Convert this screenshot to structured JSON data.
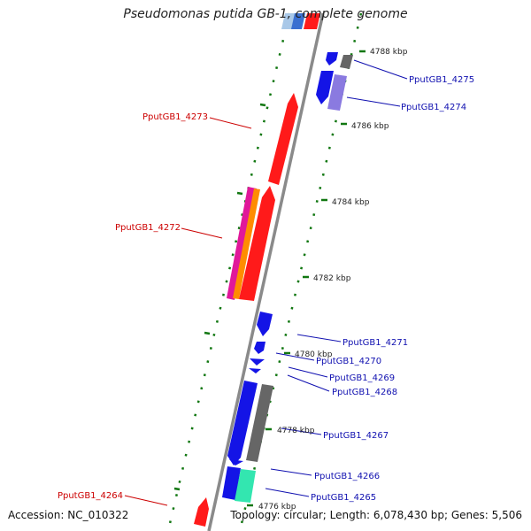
{
  "header": {
    "title": "Pseudomonas putida GB-1, complete genome"
  },
  "footer": {
    "accession": "Accession: NC_010322",
    "topology": "Topology: circular; Length: 6,078,430 bp; Genes: 5,506"
  },
  "colors": {
    "forward_red": "#ff1a1a",
    "reverse_blue": "#1414e6",
    "magenta": "#e0189a",
    "orange": "#ff8c00",
    "gray": "#777777",
    "lavender": "#8a7ae0",
    "teal": "#33e6b0",
    "tick_green": "#117711",
    "backbone": "#888888",
    "label_red": "#cc0000",
    "label_blue": "#1010b0"
  },
  "kbp_labels": {
    "k4788": "4788 kbp",
    "k4786": "4786 kbp",
    "k4784": "4784 kbp",
    "k4782": "4782 kbp",
    "k4780": "4780 kbp",
    "k4778": "4778 kbp",
    "k4776": "4776 kbp"
  },
  "genes": {
    "g4275": "PputGB1_4275",
    "g4274": "PputGB1_4274",
    "g4273": "PputGB1_4273",
    "g4272": "PputGB1_4272",
    "g4271": "PputGB1_4271",
    "g4270": "PputGB1_4270",
    "g4269": "PputGB1_4269",
    "g4268": "PputGB1_4268",
    "g4267": "PputGB1_4267",
    "g4266": "PputGB1_4266",
    "g4265": "PputGB1_4265",
    "g4264": "PputGB1_4264"
  }
}
